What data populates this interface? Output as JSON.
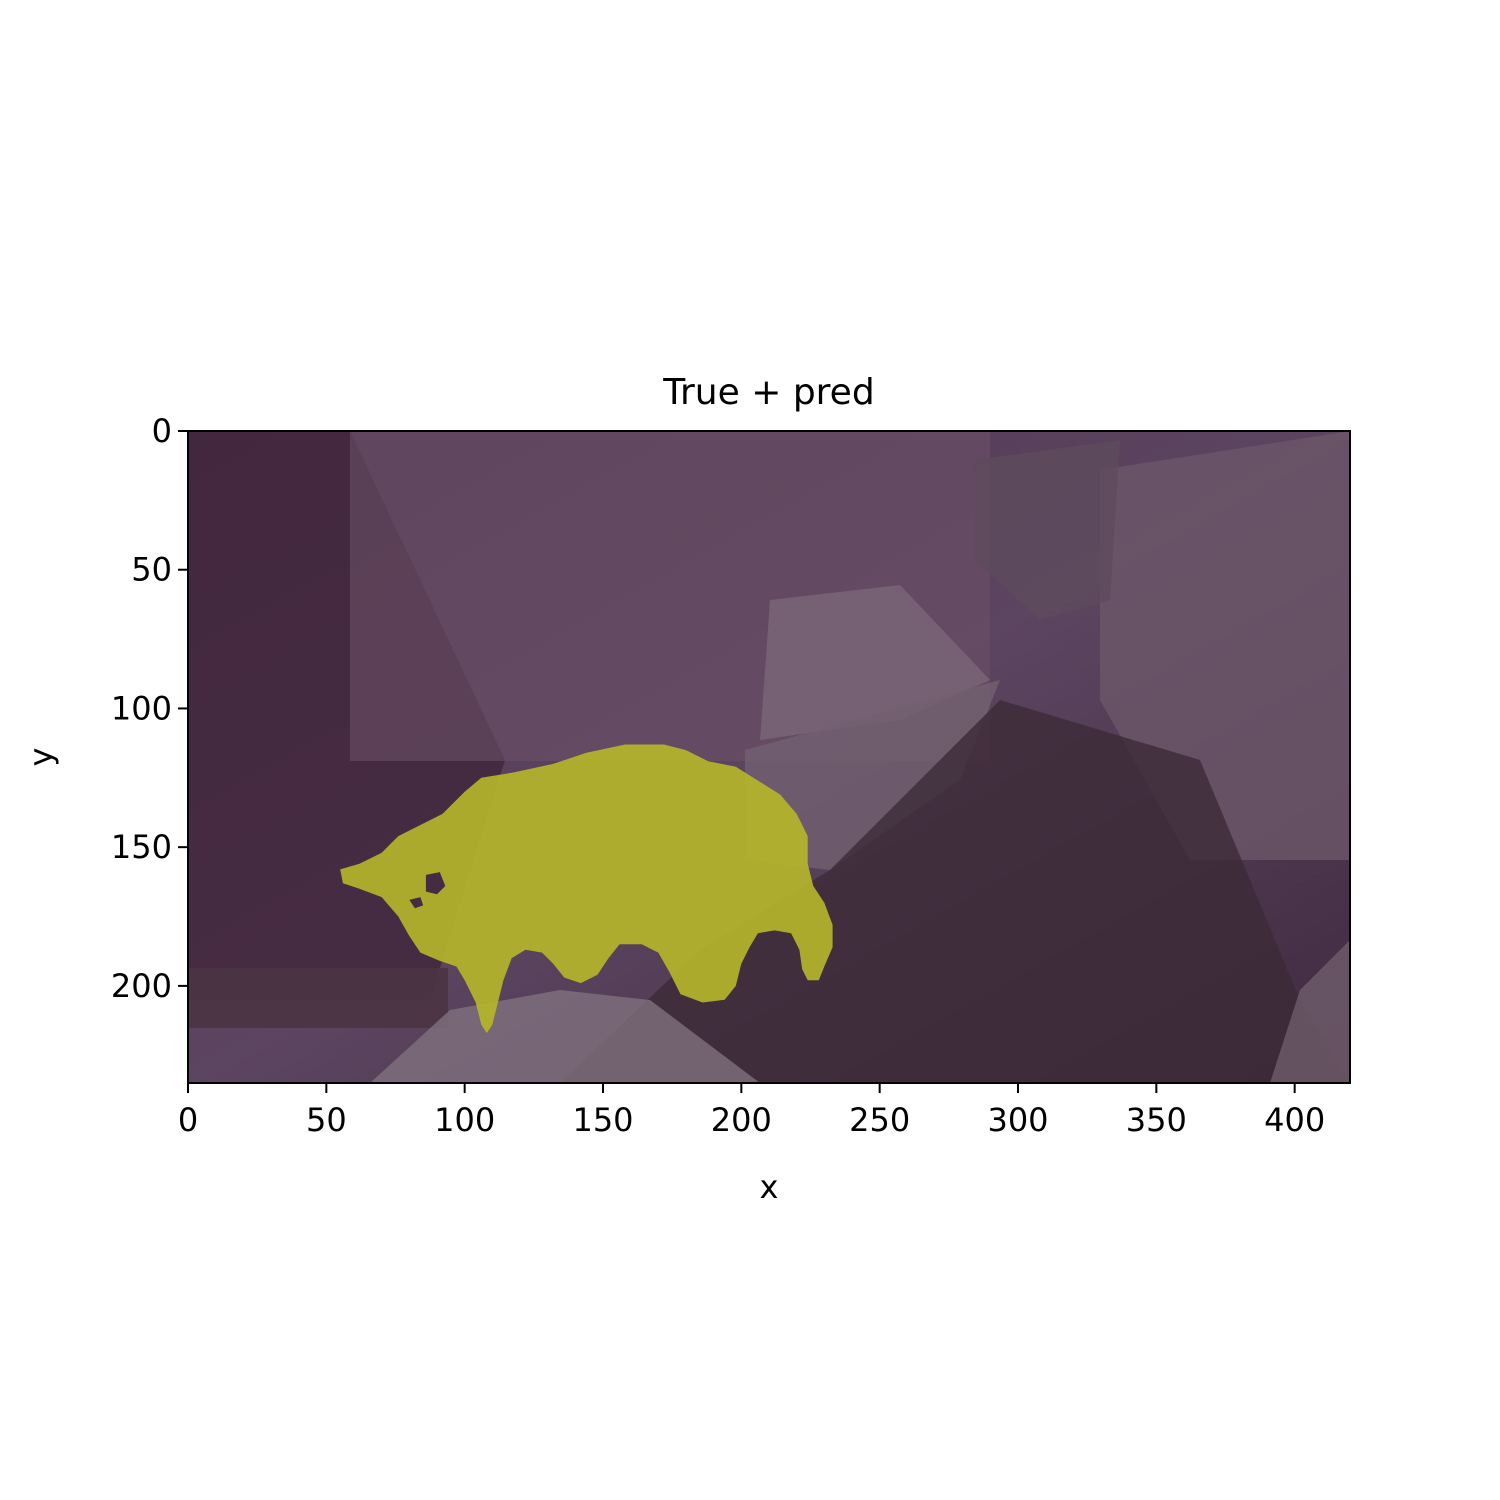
{
  "chart_data": {
    "type": "heatmap",
    "title": "True + pred",
    "xlabel": "x",
    "ylabel": "y",
    "xlim": [
      0,
      420
    ],
    "ylim": [
      235,
      0
    ],
    "y_axis_inverted": true,
    "grid": false,
    "legend": "none",
    "x_ticks": [
      0,
      50,
      100,
      150,
      200,
      250,
      300,
      350,
      400
    ],
    "y_ticks": [
      0,
      50,
      100,
      150,
      200
    ],
    "image": {
      "description_kind": "photo with segmentation mask overlay",
      "background_tint": "#4b2f4f",
      "mask_color": "#b5b52a"
    },
    "mask_outline": [
      [
        55,
        158
      ],
      [
        62,
        156
      ],
      [
        70,
        152
      ],
      [
        76,
        146
      ],
      [
        82,
        143
      ],
      [
        92,
        138
      ],
      [
        100,
        130
      ],
      [
        106,
        125
      ],
      [
        118,
        123
      ],
      [
        132,
        120
      ],
      [
        144,
        116
      ],
      [
        158,
        113
      ],
      [
        172,
        113
      ],
      [
        180,
        115
      ],
      [
        188,
        119
      ],
      [
        198,
        121
      ],
      [
        206,
        126
      ],
      [
        214,
        131
      ],
      [
        220,
        138
      ],
      [
        224,
        146
      ],
      [
        224,
        156
      ],
      [
        226,
        164
      ],
      [
        230,
        170
      ],
      [
        233,
        178
      ],
      [
        233,
        186
      ],
      [
        230,
        193
      ],
      [
        228,
        198
      ],
      [
        224,
        198
      ],
      [
        222,
        194
      ],
      [
        221,
        187
      ],
      [
        218,
        181
      ],
      [
        212,
        180
      ],
      [
        206,
        181
      ],
      [
        203,
        186
      ],
      [
        200,
        192
      ],
      [
        198,
        200
      ],
      [
        194,
        205
      ],
      [
        186,
        206
      ],
      [
        178,
        203
      ],
      [
        174,
        195
      ],
      [
        170,
        188
      ],
      [
        164,
        185
      ],
      [
        156,
        185
      ],
      [
        152,
        190
      ],
      [
        148,
        196
      ],
      [
        142,
        199
      ],
      [
        136,
        197
      ],
      [
        132,
        192
      ],
      [
        128,
        188
      ],
      [
        122,
        187
      ],
      [
        117,
        190
      ],
      [
        114,
        198
      ],
      [
        112,
        206
      ],
      [
        110,
        214
      ],
      [
        108,
        217
      ],
      [
        106,
        214
      ],
      [
        104,
        206
      ],
      [
        100,
        198
      ],
      [
        97,
        193
      ],
      [
        91,
        191
      ],
      [
        84,
        188
      ],
      [
        80,
        182
      ],
      [
        76,
        175
      ],
      [
        70,
        168
      ],
      [
        62,
        165
      ],
      [
        56,
        163
      ]
    ],
    "mask_holes": [
      [
        [
          86,
          160
        ],
        [
          91,
          159
        ],
        [
          93,
          164
        ],
        [
          90,
          167
        ],
        [
          86,
          166
        ]
      ],
      [
        [
          80,
          169
        ],
        [
          84,
          168
        ],
        [
          85,
          171
        ],
        [
          82,
          172
        ]
      ]
    ]
  }
}
